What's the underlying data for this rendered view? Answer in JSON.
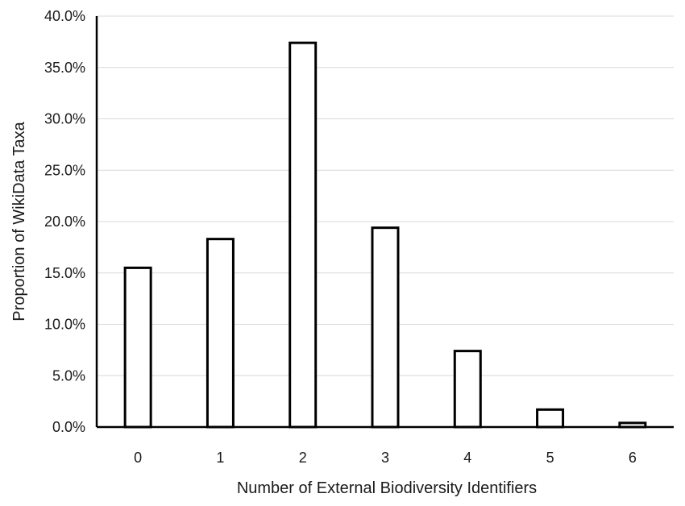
{
  "chart_data": {
    "type": "bar",
    "title": "",
    "xlabel": "Number of External Biodiversity Identifiers",
    "ylabel": "Proportion of WikiData Taxa",
    "categories": [
      "0",
      "1",
      "2",
      "3",
      "4",
      "5",
      "6"
    ],
    "values": [
      15.5,
      18.3,
      37.4,
      19.4,
      7.4,
      1.7,
      0.4
    ],
    "value_unit": "%",
    "ylim": [
      0,
      40
    ],
    "yticks": [
      "0.0%",
      "5.0%",
      "10.0%",
      "15.0%",
      "20.0%",
      "25.0%",
      "30.0%",
      "35.0%",
      "40.0%"
    ],
    "grid": true,
    "legend": "none",
    "colors": {
      "bar_fill": "#ffffff",
      "bar_stroke": "#000000",
      "grid": "#d9d9d9",
      "axis": "#000000"
    }
  }
}
